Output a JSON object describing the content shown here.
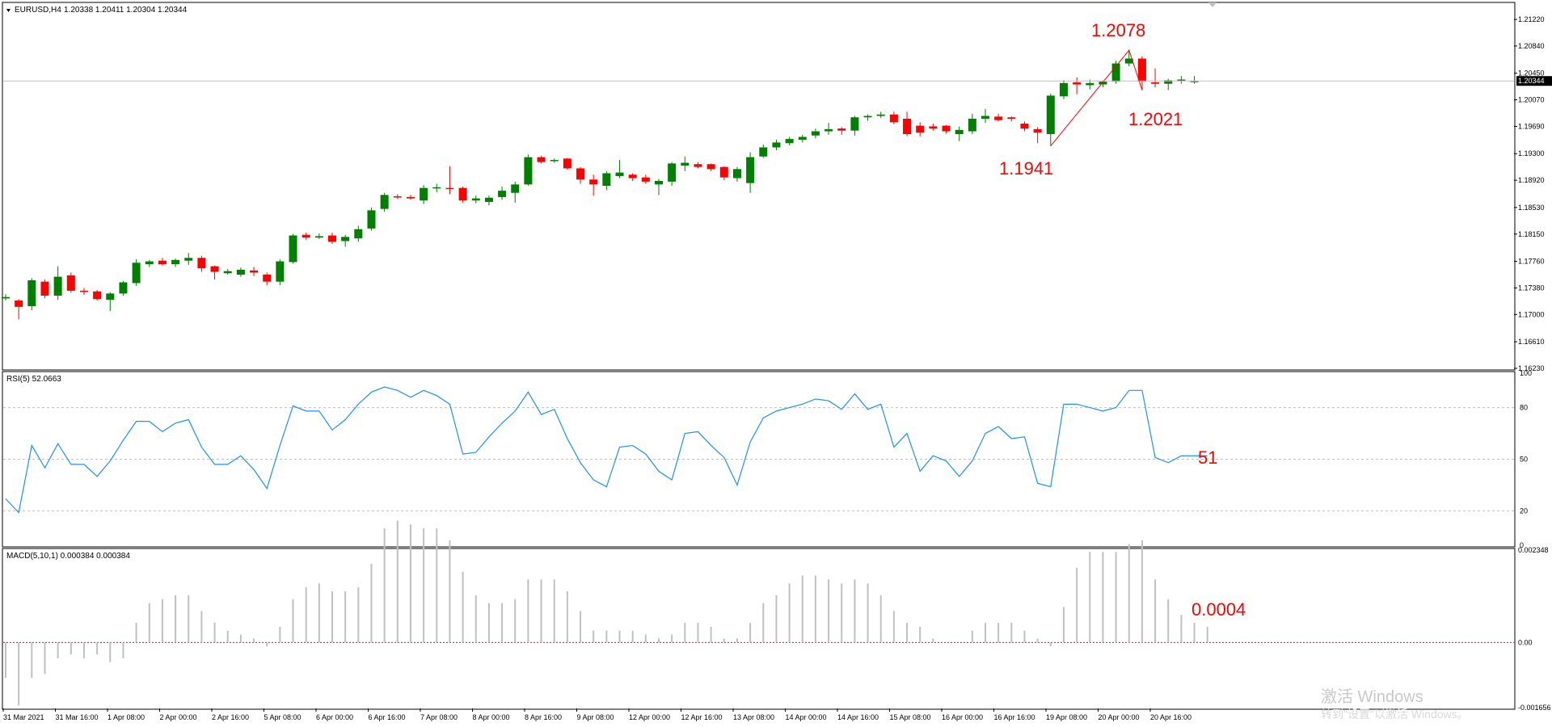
{
  "header": {
    "symbol_label": "EURUSD,H4",
    "ohlc_label": "1.20338 1.20411 1.20304 1.20344"
  },
  "price_panel": {
    "current_price_label": "1.20344",
    "annotations": {
      "peak": "1.2078",
      "trough": "1.1941",
      "latest_low": "1.2021"
    },
    "ticks": [
      "1.21220",
      "1.20840",
      "1.20450",
      "1.20070",
      "1.19690",
      "1.19300",
      "1.18920",
      "1.18530",
      "1.18150",
      "1.17760",
      "1.17380",
      "1.17000",
      "1.16610",
      "1.16230"
    ]
  },
  "rsi_panel": {
    "label": "RSI(5) 52.0663",
    "ticks": [
      "100",
      "80",
      "50",
      "20",
      "0"
    ],
    "value_annotation": "51"
  },
  "macd_panel": {
    "label": "MACD(5,10,1) 0.000384 0.000384",
    "ticks": [
      "0.002348",
      "0.00",
      "-0.001656"
    ],
    "value_annotation": "0.0004"
  },
  "time_axis": {
    "labels": [
      "31 Mar 2021",
      "31 Mar 16:00",
      "1 Apr 08:00",
      "2 Apr 00:00",
      "2 Apr 16:00",
      "5 Apr 08:00",
      "6 Apr 00:00",
      "6 Apr 16:00",
      "7 Apr 08:00",
      "8 Apr 00:00",
      "8 Apr 16:00",
      "9 Apr 08:00",
      "12 Apr 00:00",
      "12 Apr 16:00",
      "13 Apr 08:00",
      "14 Apr 00:00",
      "14 Apr 16:00",
      "15 Apr 08:00",
      "16 Apr 00:00",
      "16 Apr 16:00",
      "19 Apr 08:00",
      "20 Apr 00:00",
      "20 Apr 16:00"
    ]
  },
  "watermark": {
    "line1": "激活 Windows",
    "line2": "转到\"设置\"以激活 Windows。"
  },
  "colors": {
    "bull": "#008000",
    "bear": "#ff0000",
    "rsi_line": "#1e90ff",
    "macd_hist": "#c0c0c0",
    "zero_line": "#ff0000",
    "annotation": "#ff0000"
  },
  "chart_data": {
    "type": "candlestick",
    "symbol": "EURUSD",
    "timeframe": "H4",
    "price_range": [
      1.1623,
      1.2144
    ],
    "candles": [
      {
        "o": 1.1723,
        "h": 1.1729,
        "l": 1.172,
        "c": 1.1725
      },
      {
        "o": 1.172,
        "h": 1.1722,
        "l": 1.1693,
        "c": 1.1711
      },
      {
        "o": 1.1712,
        "h": 1.1752,
        "l": 1.1706,
        "c": 1.1749
      },
      {
        "o": 1.1747,
        "h": 1.175,
        "l": 1.1723,
        "c": 1.1727
      },
      {
        "o": 1.1727,
        "h": 1.1769,
        "l": 1.1721,
        "c": 1.1754
      },
      {
        "o": 1.1756,
        "h": 1.176,
        "l": 1.1731,
        "c": 1.1734
      },
      {
        "o": 1.1734,
        "h": 1.1738,
        "l": 1.1728,
        "c": 1.1733
      },
      {
        "o": 1.1733,
        "h": 1.1735,
        "l": 1.172,
        "c": 1.1722
      },
      {
        "o": 1.1721,
        "h": 1.1732,
        "l": 1.1705,
        "c": 1.173
      },
      {
        "o": 1.173,
        "h": 1.1748,
        "l": 1.1727,
        "c": 1.1746
      },
      {
        "o": 1.1745,
        "h": 1.1779,
        "l": 1.1741,
        "c": 1.1774
      },
      {
        "o": 1.1772,
        "h": 1.1778,
        "l": 1.1768,
        "c": 1.1776
      },
      {
        "o": 1.1777,
        "h": 1.1781,
        "l": 1.177,
        "c": 1.1772
      },
      {
        "o": 1.1772,
        "h": 1.178,
        "l": 1.1768,
        "c": 1.1778
      },
      {
        "o": 1.1777,
        "h": 1.1788,
        "l": 1.1771,
        "c": 1.1781
      },
      {
        "o": 1.1781,
        "h": 1.1784,
        "l": 1.1761,
        "c": 1.1766
      },
      {
        "o": 1.1769,
        "h": 1.177,
        "l": 1.175,
        "c": 1.1761
      },
      {
        "o": 1.1759,
        "h": 1.1765,
        "l": 1.1757,
        "c": 1.1762
      },
      {
        "o": 1.1757,
        "h": 1.1767,
        "l": 1.1754,
        "c": 1.1764
      },
      {
        "o": 1.1763,
        "h": 1.1768,
        "l": 1.1755,
        "c": 1.176
      },
      {
        "o": 1.1757,
        "h": 1.176,
        "l": 1.1742,
        "c": 1.1747
      },
      {
        "o": 1.1747,
        "h": 1.1779,
        "l": 1.1742,
        "c": 1.1776
      },
      {
        "o": 1.1775,
        "h": 1.1815,
        "l": 1.1773,
        "c": 1.1813
      },
      {
        "o": 1.1814,
        "h": 1.1817,
        "l": 1.1807,
        "c": 1.181
      },
      {
        "o": 1.181,
        "h": 1.1816,
        "l": 1.1808,
        "c": 1.1812
      },
      {
        "o": 1.1813,
        "h": 1.1817,
        "l": 1.1801,
        "c": 1.1804
      },
      {
        "o": 1.1805,
        "h": 1.1814,
        "l": 1.1797,
        "c": 1.1811
      },
      {
        "o": 1.1809,
        "h": 1.1827,
        "l": 1.1804,
        "c": 1.1822
      },
      {
        "o": 1.1823,
        "h": 1.1853,
        "l": 1.182,
        "c": 1.1849
      },
      {
        "o": 1.1851,
        "h": 1.1874,
        "l": 1.1847,
        "c": 1.1871
      },
      {
        "o": 1.1869,
        "h": 1.1872,
        "l": 1.1865,
        "c": 1.1868
      },
      {
        "o": 1.1868,
        "h": 1.1871,
        "l": 1.1864,
        "c": 1.1866
      },
      {
        "o": 1.1863,
        "h": 1.1885,
        "l": 1.1858,
        "c": 1.1881
      },
      {
        "o": 1.1881,
        "h": 1.1887,
        "l": 1.1875,
        "c": 1.1882
      },
      {
        "o": 1.1881,
        "h": 1.1912,
        "l": 1.1872,
        "c": 1.188
      },
      {
        "o": 1.1881,
        "h": 1.1883,
        "l": 1.186,
        "c": 1.1863
      },
      {
        "o": 1.1863,
        "h": 1.187,
        "l": 1.1859,
        "c": 1.1866
      },
      {
        "o": 1.1861,
        "h": 1.187,
        "l": 1.1856,
        "c": 1.1867
      },
      {
        "o": 1.1868,
        "h": 1.1883,
        "l": 1.1864,
        "c": 1.1877
      },
      {
        "o": 1.1874,
        "h": 1.189,
        "l": 1.186,
        "c": 1.1886
      },
      {
        "o": 1.1886,
        "h": 1.1929,
        "l": 1.1884,
        "c": 1.1925
      },
      {
        "o": 1.1925,
        "h": 1.1927,
        "l": 1.1916,
        "c": 1.1918
      },
      {
        "o": 1.192,
        "h": 1.1923,
        "l": 1.1917,
        "c": 1.1921
      },
      {
        "o": 1.1923,
        "h": 1.1924,
        "l": 1.1907,
        "c": 1.1909
      },
      {
        "o": 1.1909,
        "h": 1.1911,
        "l": 1.1887,
        "c": 1.1893
      },
      {
        "o": 1.1893,
        "h": 1.19,
        "l": 1.187,
        "c": 1.1886
      },
      {
        "o": 1.1884,
        "h": 1.1905,
        "l": 1.1878,
        "c": 1.1902
      },
      {
        "o": 1.1898,
        "h": 1.1921,
        "l": 1.1895,
        "c": 1.1903
      },
      {
        "o": 1.19,
        "h": 1.1902,
        "l": 1.1891,
        "c": 1.1895
      },
      {
        "o": 1.1896,
        "h": 1.19,
        "l": 1.1887,
        "c": 1.189
      },
      {
        "o": 1.1886,
        "h": 1.1894,
        "l": 1.1871,
        "c": 1.1891
      },
      {
        "o": 1.189,
        "h": 1.1918,
        "l": 1.1884,
        "c": 1.1916
      },
      {
        "o": 1.1913,
        "h": 1.1926,
        "l": 1.1905,
        "c": 1.1917
      },
      {
        "o": 1.1915,
        "h": 1.1918,
        "l": 1.1909,
        "c": 1.1911
      },
      {
        "o": 1.1915,
        "h": 1.1916,
        "l": 1.1905,
        "c": 1.1908
      },
      {
        "o": 1.1911,
        "h": 1.1912,
        "l": 1.1892,
        "c": 1.1896
      },
      {
        "o": 1.1895,
        "h": 1.1911,
        "l": 1.189,
        "c": 1.1908
      },
      {
        "o": 1.1888,
        "h": 1.1932,
        "l": 1.1874,
        "c": 1.1925
      },
      {
        "o": 1.1926,
        "h": 1.1943,
        "l": 1.1924,
        "c": 1.1939
      },
      {
        "o": 1.1939,
        "h": 1.195,
        "l": 1.1935,
        "c": 1.1946
      },
      {
        "o": 1.1945,
        "h": 1.1954,
        "l": 1.1942,
        "c": 1.1951
      },
      {
        "o": 1.195,
        "h": 1.1957,
        "l": 1.1946,
        "c": 1.1954
      },
      {
        "o": 1.1956,
        "h": 1.1966,
        "l": 1.1952,
        "c": 1.1962
      },
      {
        "o": 1.1962,
        "h": 1.1974,
        "l": 1.1957,
        "c": 1.1965
      },
      {
        "o": 1.1966,
        "h": 1.1968,
        "l": 1.1957,
        "c": 1.1963
      },
      {
        "o": 1.1963,
        "h": 1.1984,
        "l": 1.1956,
        "c": 1.1982
      },
      {
        "o": 1.1982,
        "h": 1.1986,
        "l": 1.1977,
        "c": 1.1984
      },
      {
        "o": 1.1984,
        "h": 1.199,
        "l": 1.1981,
        "c": 1.1986
      },
      {
        "o": 1.1986,
        "h": 1.199,
        "l": 1.1972,
        "c": 1.1975
      },
      {
        "o": 1.198,
        "h": 1.199,
        "l": 1.1955,
        "c": 1.1958
      },
      {
        "o": 1.197,
        "h": 1.1975,
        "l": 1.1955,
        "c": 1.196
      },
      {
        "o": 1.1969,
        "h": 1.1973,
        "l": 1.1963,
        "c": 1.1966
      },
      {
        "o": 1.197,
        "h": 1.1971,
        "l": 1.1959,
        "c": 1.1962
      },
      {
        "o": 1.1958,
        "h": 1.1969,
        "l": 1.1948,
        "c": 1.1964
      },
      {
        "o": 1.1962,
        "h": 1.1987,
        "l": 1.1958,
        "c": 1.198
      },
      {
        "o": 1.198,
        "h": 1.1994,
        "l": 1.1974,
        "c": 1.1984
      },
      {
        "o": 1.1983,
        "h": 1.1987,
        "l": 1.1976,
        "c": 1.1978
      },
      {
        "o": 1.1982,
        "h": 1.1983,
        "l": 1.1976,
        "c": 1.198
      },
      {
        "o": 1.1973,
        "h": 1.1976,
        "l": 1.1962,
        "c": 1.1966
      },
      {
        "o": 1.1965,
        "h": 1.1968,
        "l": 1.1945,
        "c": 1.196
      },
      {
        "o": 1.1958,
        "h": 1.2016,
        "l": 1.1941,
        "c": 1.2013
      },
      {
        "o": 1.2012,
        "h": 1.2035,
        "l": 1.2008,
        "c": 1.2031
      },
      {
        "o": 1.2032,
        "h": 1.2039,
        "l": 1.2015,
        "c": 1.2029
      },
      {
        "o": 1.2028,
        "h": 1.2036,
        "l": 1.2022,
        "c": 1.2031
      },
      {
        "o": 1.2029,
        "h": 1.2035,
        "l": 1.2025,
        "c": 1.2033
      },
      {
        "o": 1.2033,
        "h": 1.2063,
        "l": 1.203,
        "c": 1.2059
      },
      {
        "o": 1.2059,
        "h": 1.2078,
        "l": 1.2055,
        "c": 1.2066
      },
      {
        "o": 1.2066,
        "h": 1.2069,
        "l": 1.2021,
        "c": 1.2033
      },
      {
        "o": 1.2032,
        "h": 1.2052,
        "l": 1.2025,
        "c": 1.203
      },
      {
        "o": 1.203,
        "h": 1.2037,
        "l": 1.2021,
        "c": 1.2035
      },
      {
        "o": 1.2034,
        "h": 1.2041,
        "l": 1.203,
        "c": 1.2036
      },
      {
        "o": 1.2034,
        "h": 1.2041,
        "l": 1.203,
        "c": 1.2034
      }
    ],
    "zigzag": [
      {
        "index": 80,
        "value": 1.1941
      },
      {
        "index": 86,
        "value": 1.2078
      },
      {
        "index": 87,
        "value": 1.2021
      }
    ],
    "rsi": {
      "name": "RSI(5)",
      "range": [
        0,
        100
      ],
      "levels": [
        20,
        50,
        80
      ],
      "values": [
        27,
        19,
        58,
        45,
        59,
        47,
        47,
        40,
        49,
        61,
        72,
        72,
        66,
        71,
        73,
        57,
        47,
        47,
        52,
        44,
        33,
        58,
        81,
        78,
        78,
        67,
        73,
        82,
        89,
        92,
        90,
        86,
        90,
        87,
        82,
        53,
        54,
        63,
        71,
        78,
        89,
        76,
        79,
        62,
        48,
        38,
        34,
        57,
        58,
        53,
        43,
        38,
        65,
        66,
        58,
        51,
        35,
        60,
        74,
        78,
        80,
        82,
        85,
        84,
        79,
        88,
        79,
        82,
        57,
        65,
        43,
        52,
        49,
        40,
        49,
        65,
        69,
        62,
        63,
        36,
        34,
        82,
        82,
        80,
        78,
        80,
        90,
        90,
        51,
        48,
        52,
        52,
        52
      ]
    },
    "macd": {
      "name": "MACD(5,10,1)",
      "range": [
        -0.001656,
        0.002348
      ],
      "values": [
        -0.0009,
        -0.0016,
        -0.0009,
        -0.0008,
        -0.0004,
        -0.0003,
        -0.0004,
        -0.0003,
        -0.0005,
        -0.0004,
        0.0005,
        0.001,
        0.0011,
        0.0012,
        0.0012,
        0.0008,
        0.0005,
        0.0003,
        0.0002,
        0.0001,
        -0.0001,
        0.0004,
        0.0011,
        0.0014,
        0.0015,
        0.0013,
        0.0013,
        0.0014,
        0.002,
        0.0029,
        0.0031,
        0.003,
        0.0029,
        0.0029,
        0.0026,
        0.0018,
        0.0012,
        0.001,
        0.001,
        0.0011,
        0.0016,
        0.0016,
        0.0016,
        0.0013,
        0.0008,
        0.0003,
        0.0003,
        0.0003,
        0.0003,
        0.0002,
        0.0001,
        0.0002,
        0.0005,
        0.0005,
        0.0004,
        0.0001,
        0.0001,
        0.0005,
        0.001,
        0.0012,
        0.0015,
        0.0017,
        0.0017,
        0.0016,
        0.0015,
        0.0016,
        0.0015,
        0.0012,
        0.0008,
        0.0005,
        0.0004,
        0.0001,
        0.0,
        0.0,
        0.0003,
        0.0005,
        0.0005,
        0.0005,
        0.0003,
        0.0001,
        -0.0001,
        0.0009,
        0.0019,
        0.0023,
        0.0023,
        0.0023,
        0.0025,
        0.0026,
        0.0016,
        0.0011,
        0.0007,
        0.0005,
        0.0004
      ]
    }
  }
}
